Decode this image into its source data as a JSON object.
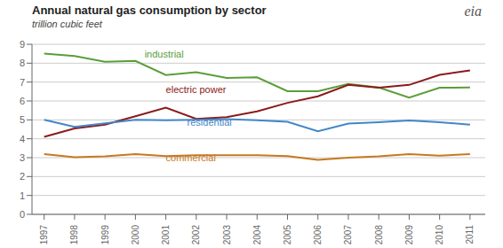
{
  "chart_data": {
    "type": "line",
    "title": "Annual natural gas consumption by sector",
    "subtitle": "trillion cubic feet",
    "logo": "eia",
    "x": [
      1997,
      1998,
      1999,
      2000,
      2001,
      2002,
      2003,
      2004,
      2005,
      2006,
      2007,
      2008,
      2009,
      2010,
      2011
    ],
    "series": [
      {
        "name": "industrial",
        "color": "#5a9e3a",
        "values": [
          8.51,
          8.38,
          8.08,
          8.12,
          7.37,
          7.52,
          7.22,
          7.25,
          6.52,
          6.52,
          6.9,
          6.71,
          6.18,
          6.7,
          6.71
        ]
      },
      {
        "name": "electric power",
        "color": "#8b1a1a",
        "values": [
          4.1,
          4.55,
          4.75,
          5.19,
          5.65,
          5.05,
          5.15,
          5.45,
          5.9,
          6.25,
          6.85,
          6.7,
          6.85,
          7.38,
          7.62
        ]
      },
      {
        "name": "residential",
        "color": "#4287c8",
        "values": [
          5.0,
          4.63,
          4.82,
          5.0,
          4.98,
          5.0,
          5.04,
          4.98,
          4.9,
          4.4,
          4.8,
          4.88,
          4.97,
          4.88,
          4.75
        ]
      },
      {
        "name": "commercial",
        "color": "#c87820",
        "values": [
          3.19,
          3.02,
          3.07,
          3.19,
          3.08,
          3.13,
          3.13,
          3.13,
          3.08,
          2.88,
          3.0,
          3.07,
          3.19,
          3.11,
          3.19
        ]
      }
    ],
    "annotations": [
      {
        "text": "industrial",
        "x": 2000.3,
        "y": 8.22,
        "color": "#5a9e3a"
      },
      {
        "text": "electric power",
        "x": 2001.0,
        "y": 6.35,
        "color": "#8b1a1a"
      },
      {
        "text": "residential",
        "x": 2001.7,
        "y": 4.58,
        "color": "#4287c8"
      },
      {
        "text": "commercial",
        "x": 2001.0,
        "y": 2.7,
        "color": "#c87820"
      }
    ],
    "xlim": [
      1996.6,
      2011.5
    ],
    "xticks": [
      1997,
      1998,
      1999,
      2000,
      2001,
      2002,
      2003,
      2004,
      2005,
      2006,
      2007,
      2008,
      2009,
      2010,
      2011
    ],
    "ylim": [
      0,
      9
    ],
    "yticks": [
      0,
      1,
      2,
      3,
      4,
      5,
      6,
      7,
      8,
      9
    ],
    "grid": true
  }
}
